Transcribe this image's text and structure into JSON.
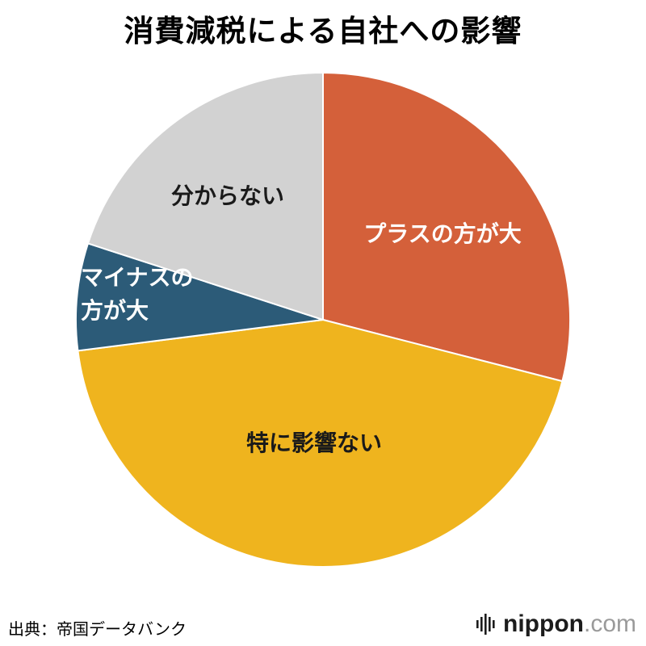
{
  "title": "消費減税による自社への影響",
  "source": "出典：帝国データバンク",
  "logo": {
    "icon": "soundwave-bars-icon",
    "name": "nippon",
    "suffix": ".com"
  },
  "chart_data": {
    "type": "pie",
    "title": "消費減税による自社への影響",
    "start_angle_deg": -90,
    "direction": "clockwise",
    "total": 100,
    "legend_position": "labels-inside",
    "slices": [
      {
        "label": "プラスの方が大",
        "value": 29,
        "color": "#d4603a",
        "label_color": "#ffffff"
      },
      {
        "label": "特に影響ない",
        "value": 44,
        "color": "#efb41e",
        "label_color": "#1a1a1a"
      },
      {
        "label": "マイナスの方が大",
        "value": 7,
        "color": "#2c5b78",
        "label_color": "#ffffff"
      },
      {
        "label": "分からない",
        "value": 20,
        "color": "#d2d2d2",
        "label_color": "#1a1a1a"
      }
    ]
  }
}
